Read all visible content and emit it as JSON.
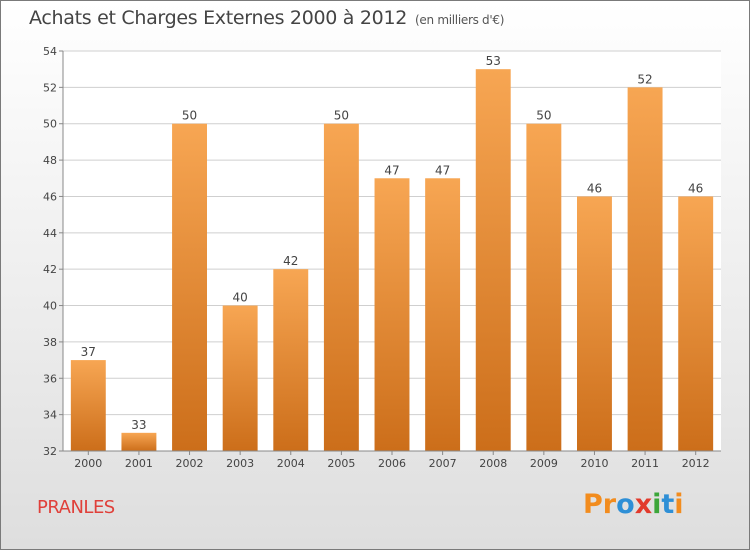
{
  "header": {
    "title": "Achats et Charges Externes 2000 à 2012",
    "unit": "(en milliers d'€)"
  },
  "commune": "PRANLES",
  "logo": {
    "text": "Proxiti",
    "letter_colors": [
      "#f28c1e",
      "#f28c1e",
      "#2e8fd6",
      "#e23a2c",
      "#3ca63a",
      "#2e8fd6",
      "#f28c1e"
    ]
  },
  "colors": {
    "bar_top": "#f7a653",
    "bar_bottom": "#cc6e1a",
    "grid": "#cfcfcf",
    "plot_bg": "#ffffff"
  },
  "chart_data": {
    "type": "bar",
    "title": "Achats et Charges Externes 2000 à 2012",
    "categories": [
      "2000",
      "2001",
      "2002",
      "2003",
      "2004",
      "2005",
      "2006",
      "2007",
      "2008",
      "2009",
      "2010",
      "2011",
      "2012"
    ],
    "values": [
      37,
      33,
      50,
      40,
      42,
      50,
      47,
      47,
      53,
      50,
      46,
      52,
      46
    ],
    "value_labels": [
      "37",
      "33",
      "50",
      "40",
      "42",
      "50",
      "47",
      "47",
      "53",
      "50",
      "46",
      "52",
      "46"
    ],
    "ylim": [
      32,
      54
    ],
    "yticks": [
      "32",
      "34",
      "36",
      "38",
      "40",
      "42",
      "44",
      "46",
      "48",
      "50",
      "52",
      "54"
    ],
    "grid": true
  }
}
